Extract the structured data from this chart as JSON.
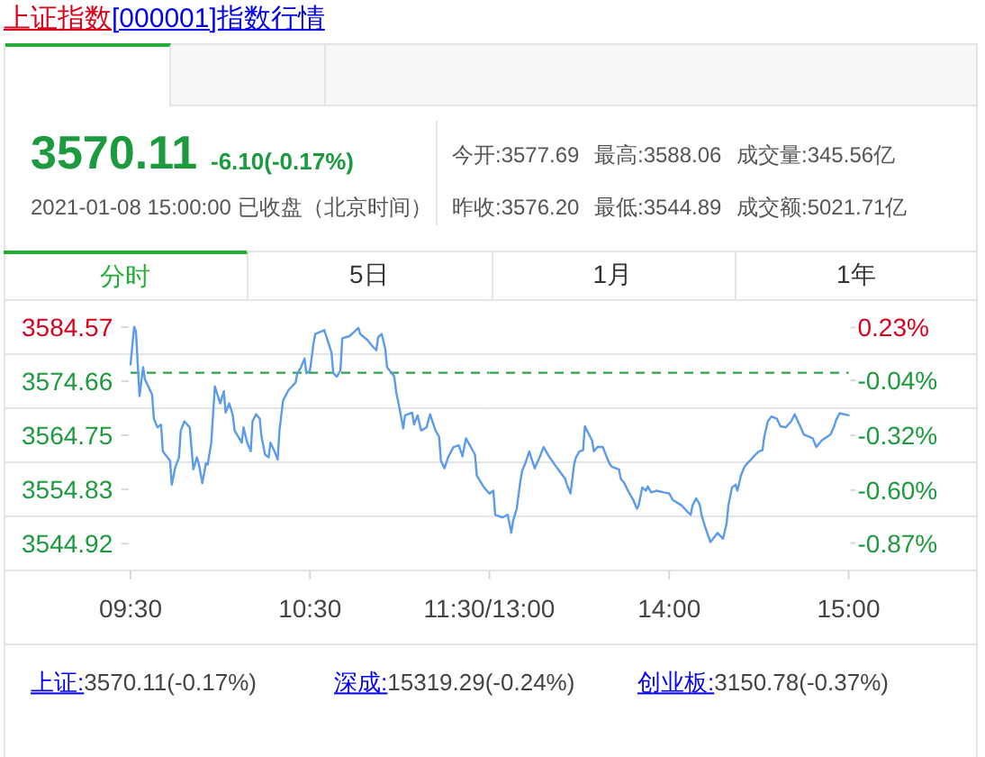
{
  "chart_data": [
    {
      "type": "other",
      "title": "上证指数",
      "subtitle": "[000001]指数行情",
      "annotations": [
        "3570.11",
        "-6.10(-0.17%)",
        "2021-01-08 15:00:00 已收盘（北京时间）",
        "今开:3577.69",
        "最高:3588.06",
        "成交量:345.56亿",
        "昨收:3576.20",
        "最低:3544.89",
        "成交额:5021.71亿",
        "分时",
        "5日",
        "1月",
        "1年"
      ]
    },
    {
      "type": "line",
      "color": "#5b9bea",
      "x": [
        9.5,
        9.52,
        9.53,
        9.55,
        9.57,
        9.58,
        9.62,
        9.63,
        9.65,
        9.67,
        9.68,
        9.72,
        9.73,
        9.75,
        9.77,
        9.78,
        9.8,
        9.83,
        9.85,
        9.87,
        9.88,
        9.9,
        9.92,
        9.93,
        9.95,
        9.97,
        10.0,
        10.02,
        10.03,
        10.05,
        10.07,
        10.08,
        10.12,
        10.13,
        10.15,
        10.17,
        10.18,
        10.2,
        10.22,
        10.23,
        10.25,
        10.27,
        10.28,
        10.3,
        10.32,
        10.33,
        10.35,
        10.38,
        10.42,
        10.43,
        10.45,
        10.47,
        10.48,
        10.5,
        10.52,
        10.53,
        10.58,
        10.62,
        10.63,
        10.65,
        10.67,
        10.68,
        10.72,
        10.75,
        10.77,
        10.78,
        10.82,
        10.85,
        10.87,
        10.88,
        10.9,
        10.92,
        10.93,
        10.97,
        10.98,
        11.0,
        11.02,
        11.03,
        11.07,
        11.08,
        11.1,
        11.12,
        11.15,
        11.17,
        11.2,
        11.22,
        11.23,
        11.25,
        11.27,
        11.3,
        11.33,
        11.35,
        11.37,
        11.42,
        11.43,
        11.47,
        11.5
      ],
      "values": [
        3577.7,
        3584.6,
        3583.8,
        3571.9,
        3577.2,
        3575.0,
        3572.2,
        3567.8,
        3566.2,
        3566.7,
        3561.8,
        3560.1,
        3555.7,
        3559.0,
        3560.7,
        3565.6,
        3567.3,
        3566.2,
        3558.5,
        3560.7,
        3559.6,
        3556.0,
        3559.6,
        3559.4,
        3563.4,
        3573.7,
        3570.6,
        3572.8,
        3568.9,
        3570.6,
        3568.4,
        3565.6,
        3563.4,
        3566.2,
        3563.4,
        3561.8,
        3567.3,
        3568.6,
        3567.8,
        3564.5,
        3561.2,
        3560.7,
        3563.4,
        3562.0,
        3560.3,
        3565.6,
        3571.1,
        3573.0,
        3574.4,
        3576.1,
        3577.2,
        3578.8,
        3576.1,
        3576.6,
        3581.6,
        3583.3,
        3584.0,
        3579.9,
        3576.1,
        3575.5,
        3576.6,
        3582.5,
        3582.9,
        3583.8,
        3584.4,
        3583.3,
        3582.2,
        3581.0,
        3580.3,
        3582.7,
        3583.3,
        3580.5,
        3577.2,
        3575.5,
        3572.8,
        3569.5,
        3566.0,
        3568.4,
        3568.9,
        3566.7,
        3568.4,
        3565.6,
        3566.2,
        3568.6,
        3565.6,
        3564.5,
        3560.1,
        3558.7,
        3560.7,
        3562.6,
        3562.9,
        3560.9,
        3564.2,
        3561.2,
        3557.4,
        3555.2,
        3554.1
      ],
      "xlim": [
        9.5,
        11.5
      ],
      "xticks": [
        {
          "value": 9.5,
          "label": "09:30"
        },
        {
          "value": 10.5,
          "label": "10:30"
        },
        {
          "value": 11.5,
          "label": "11:30/13:00"
        }
      ],
      "ylim": [
        3540.0,
        3589.5
      ],
      "yticks": [
        {
          "value": 3589.5,
          "label": null
        },
        3584.57,
        {
          "value": 3579.6,
          "label": null
        },
        3574.66,
        {
          "value": 3569.7,
          "label": null
        },
        3564.75,
        {
          "value": 3559.8,
          "label": null
        },
        3554.83,
        {
          "value": 3549.9,
          "label": null
        },
        3544.92,
        {
          "value": 3540.0,
          "label": null
        }
      ],
      "grid": "y",
      "ref_lines": [
        {
          "axis": "y",
          "value": 3576.2,
          "color": "#2aa54a",
          "line_style": "dashed"
        }
      ]
    },
    {
      "type": "line",
      "color": "#5b9bea",
      "x": [
        13.0,
        13.02,
        13.03,
        13.07,
        13.1,
        13.12,
        13.13,
        13.15,
        13.17,
        13.18,
        13.2,
        13.22,
        13.25,
        13.28,
        13.3,
        13.33,
        13.37,
        13.42,
        13.43,
        13.45,
        13.47,
        13.48,
        13.5,
        13.52,
        13.53,
        13.57,
        13.58,
        13.6,
        13.63,
        13.65,
        13.67,
        13.68,
        13.72,
        13.73,
        13.75,
        13.77,
        13.8,
        13.82,
        13.83,
        13.85,
        13.87,
        13.88,
        13.9,
        13.93,
        13.97,
        14.0,
        14.02,
        14.07,
        14.1,
        14.12,
        14.13,
        14.15,
        14.17,
        14.18,
        14.2,
        14.23,
        14.27,
        14.3,
        14.32,
        14.33,
        14.35,
        14.37,
        14.38,
        14.4,
        14.42,
        14.43,
        14.45,
        14.48,
        14.5,
        14.52,
        14.53,
        14.55,
        14.57,
        14.6,
        14.62,
        14.65,
        14.68,
        14.7,
        14.73,
        14.75,
        14.8,
        14.82,
        14.85,
        14.9,
        14.92,
        14.93,
        14.95,
        15.0
      ],
      "values": [
        3554.1,
        3554.6,
        3550.2,
        3549.7,
        3550.2,
        3546.9,
        3549.1,
        3551.3,
        3556.3,
        3558.2,
        3559.8,
        3561.8,
        3558.7,
        3560.9,
        3562.6,
        3560.9,
        3559.0,
        3556.8,
        3555.7,
        3554.1,
        3559.4,
        3560.7,
        3561.8,
        3562.0,
        3566.4,
        3563.8,
        3561.8,
        3562.6,
        3562.6,
        3560.9,
        3559.4,
        3559.0,
        3558.5,
        3556.8,
        3556.0,
        3554.6,
        3552.9,
        3551.3,
        3551.9,
        3555.2,
        3554.6,
        3555.4,
        3554.3,
        3554.6,
        3554.3,
        3554.1,
        3552.9,
        3551.9,
        3550.8,
        3550.2,
        3551.9,
        3553.2,
        3552.1,
        3550.2,
        3548.0,
        3545.2,
        3546.9,
        3545.8,
        3548.6,
        3551.9,
        3555.2,
        3555.7,
        3554.6,
        3557.4,
        3559.0,
        3559.4,
        3560.1,
        3561.2,
        3561.8,
        3562.0,
        3564.5,
        3567.3,
        3568.2,
        3567.8,
        3566.4,
        3566.2,
        3567.3,
        3568.6,
        3566.4,
        3564.9,
        3564.2,
        3562.6,
        3563.8,
        3564.9,
        3566.4,
        3567.5,
        3568.8,
        3568.4
      ],
      "xlim": [
        13,
        15
      ],
      "xticks": [
        {
          "value": 14,
          "label": "14:00"
        },
        {
          "value": 15,
          "label": "15:00"
        }
      ],
      "ylim": [
        3540.0,
        3589.5
      ],
      "yticks": [
        {
          "value": 3589.5,
          "label": null
        },
        {
          "value": 3579.6,
          "label": null
        },
        {
          "value": 3569.7,
          "label": null
        },
        {
          "value": 3559.8,
          "label": null
        },
        {
          "value": 3549.9,
          "label": null
        },
        {
          "value": 3540.0,
          "label": null
        }
      ],
      "tick_labels": "x",
      "y2lim": [
        -1.01,
        0.37
      ],
      "y2ticks": [
        {
          "value": 0.23,
          "label": "0.23%"
        },
        {
          "value": -0.04,
          "label": "-0.04%"
        },
        {
          "value": -0.32,
          "label": "-0.32%"
        },
        {
          "value": -0.6,
          "label": "-0.60%"
        },
        {
          "value": -0.87,
          "label": "-0.87%"
        }
      ],
      "grid": "y",
      "ref_lines": [
        {
          "axis": "y",
          "value": 3576.2,
          "color": "#2aa54a",
          "line_style": "dashed"
        }
      ]
    },
    {
      "type": "other",
      "annotations": [
        "上证:",
        "3570.11(-0.17%)",
        "深成:",
        "15319.29(-0.24%)",
        "创业板:",
        "3150.78(-0.37%)"
      ]
    }
  ]
}
